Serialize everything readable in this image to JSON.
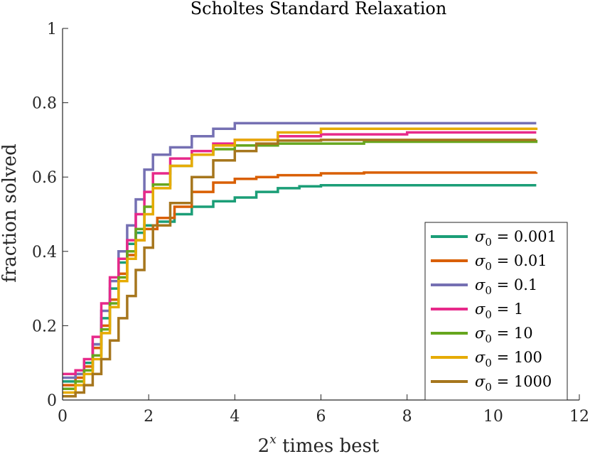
{
  "chart_data": {
    "type": "line",
    "title": "Scholtes Standard Relaxation",
    "xlabel_base": "2",
    "xlabel_sup": "x",
    "xlabel_rest": " times best",
    "ylabel": "fraction solved",
    "xlim": [
      0,
      12
    ],
    "ylim": [
      0,
      1
    ],
    "xticks": [
      0,
      2,
      4,
      6,
      8,
      10,
      12
    ],
    "yticks": [
      0,
      0.2,
      0.4,
      0.6,
      0.8,
      1
    ],
    "ytick_labels": [
      "0",
      "0.2",
      "0.4",
      "0.6",
      "0.8",
      "1"
    ],
    "legend_position": "lower-right",
    "series": [
      {
        "name": "σ0 = 0.001",
        "sigma_symbol": "σ",
        "sub": "0",
        "value": "= 0.001",
        "color": "#1b9e77",
        "points": [
          [
            0,
            0.05
          ],
          [
            0.3,
            0.07
          ],
          [
            0.5,
            0.1
          ],
          [
            0.7,
            0.15
          ],
          [
            0.9,
            0.22
          ],
          [
            1.1,
            0.3
          ],
          [
            1.3,
            0.37
          ],
          [
            1.5,
            0.42
          ],
          [
            1.7,
            0.45
          ],
          [
            1.9,
            0.47
          ],
          [
            2.2,
            0.48
          ],
          [
            2.6,
            0.5
          ],
          [
            3,
            0.52
          ],
          [
            3.5,
            0.535
          ],
          [
            4,
            0.545
          ],
          [
            4.5,
            0.56
          ],
          [
            5,
            0.57
          ],
          [
            5.5,
            0.575
          ],
          [
            6,
            0.578
          ],
          [
            11,
            0.578
          ]
        ]
      },
      {
        "name": "σ0 = 0.01",
        "sigma_symbol": "σ",
        "sub": "0",
        "value": "= 0.01",
        "color": "#d95f02",
        "points": [
          [
            0,
            0.04
          ],
          [
            0.3,
            0.06
          ],
          [
            0.5,
            0.09
          ],
          [
            0.7,
            0.14
          ],
          [
            0.9,
            0.2
          ],
          [
            1.1,
            0.27
          ],
          [
            1.3,
            0.34
          ],
          [
            1.5,
            0.39
          ],
          [
            1.7,
            0.43
          ],
          [
            1.9,
            0.46
          ],
          [
            2.2,
            0.49
          ],
          [
            2.6,
            0.52
          ],
          [
            3,
            0.56
          ],
          [
            3.5,
            0.585
          ],
          [
            4,
            0.595
          ],
          [
            4.5,
            0.6
          ],
          [
            5,
            0.605
          ],
          [
            6,
            0.61
          ],
          [
            7,
            0.612
          ],
          [
            11,
            0.613
          ]
        ]
      },
      {
        "name": "σ0 = 0.1",
        "sigma_symbol": "σ",
        "sub": "0",
        "value": "= 0.1",
        "color": "#7570b3",
        "points": [
          [
            0,
            0.06
          ],
          [
            0.3,
            0.07
          ],
          [
            0.5,
            0.08
          ],
          [
            0.7,
            0.15
          ],
          [
            0.9,
            0.24
          ],
          [
            1.1,
            0.32
          ],
          [
            1.3,
            0.4
          ],
          [
            1.5,
            0.47
          ],
          [
            1.7,
            0.54
          ],
          [
            1.9,
            0.62
          ],
          [
            2.1,
            0.66
          ],
          [
            2.5,
            0.68
          ],
          [
            3,
            0.71
          ],
          [
            3.5,
            0.73
          ],
          [
            4,
            0.745
          ],
          [
            5,
            0.745
          ],
          [
            11,
            0.745
          ]
        ]
      },
      {
        "name": "σ0 = 1",
        "sigma_symbol": "σ",
        "sub": "0",
        "value": "= 1",
        "color": "#e7298a",
        "points": [
          [
            0,
            0.07
          ],
          [
            0.3,
            0.08
          ],
          [
            0.5,
            0.11
          ],
          [
            0.7,
            0.17
          ],
          [
            0.9,
            0.26
          ],
          [
            1.1,
            0.33
          ],
          [
            1.3,
            0.38
          ],
          [
            1.5,
            0.43
          ],
          [
            1.7,
            0.5
          ],
          [
            1.9,
            0.56
          ],
          [
            2.1,
            0.61
          ],
          [
            2.5,
            0.65
          ],
          [
            3,
            0.67
          ],
          [
            3.5,
            0.69
          ],
          [
            4,
            0.7
          ],
          [
            5,
            0.71
          ],
          [
            6,
            0.715
          ],
          [
            8,
            0.72
          ],
          [
            11,
            0.72
          ]
        ]
      },
      {
        "name": "σ0 = 10",
        "sigma_symbol": "σ",
        "sub": "0",
        "value": "= 10",
        "color": "#66a61e",
        "points": [
          [
            0,
            0.03
          ],
          [
            0.3,
            0.05
          ],
          [
            0.5,
            0.08
          ],
          [
            0.7,
            0.12
          ],
          [
            0.9,
            0.19
          ],
          [
            1.1,
            0.26
          ],
          [
            1.3,
            0.33
          ],
          [
            1.5,
            0.4
          ],
          [
            1.7,
            0.46
          ],
          [
            1.9,
            0.52
          ],
          [
            2.1,
            0.58
          ],
          [
            2.5,
            0.63
          ],
          [
            3,
            0.66
          ],
          [
            3.5,
            0.675
          ],
          [
            4,
            0.685
          ],
          [
            5,
            0.69
          ],
          [
            7,
            0.695
          ],
          [
            11,
            0.7
          ]
        ]
      },
      {
        "name": "σ0 = 100",
        "sigma_symbol": "σ",
        "sub": "0",
        "value": "= 100",
        "color": "#e6ab02",
        "points": [
          [
            0,
            0.02
          ],
          [
            0.3,
            0.04
          ],
          [
            0.5,
            0.07
          ],
          [
            0.7,
            0.11
          ],
          [
            0.9,
            0.18
          ],
          [
            1.1,
            0.25
          ],
          [
            1.3,
            0.32
          ],
          [
            1.5,
            0.38
          ],
          [
            1.7,
            0.43
          ],
          [
            1.9,
            0.5
          ],
          [
            2.1,
            0.57
          ],
          [
            2.5,
            0.63
          ],
          [
            3,
            0.66
          ],
          [
            3.5,
            0.685
          ],
          [
            4,
            0.7
          ],
          [
            5,
            0.72
          ],
          [
            6,
            0.73
          ],
          [
            11,
            0.733
          ]
        ]
      },
      {
        "name": "σ0 = 1000",
        "sigma_symbol": "σ",
        "sub": "0",
        "value": "= 1000",
        "color": "#a6761d",
        "points": [
          [
            0,
            0.01
          ],
          [
            0.3,
            0.02
          ],
          [
            0.5,
            0.04
          ],
          [
            0.7,
            0.07
          ],
          [
            0.9,
            0.11
          ],
          [
            1.1,
            0.16
          ],
          [
            1.3,
            0.22
          ],
          [
            1.5,
            0.28
          ],
          [
            1.7,
            0.35
          ],
          [
            1.9,
            0.41
          ],
          [
            2.1,
            0.47
          ],
          [
            2.5,
            0.53
          ],
          [
            3,
            0.6
          ],
          [
            3.5,
            0.645
          ],
          [
            4,
            0.67
          ],
          [
            4.5,
            0.69
          ],
          [
            5,
            0.698
          ],
          [
            6,
            0.7
          ],
          [
            11,
            0.7
          ]
        ]
      }
    ]
  }
}
